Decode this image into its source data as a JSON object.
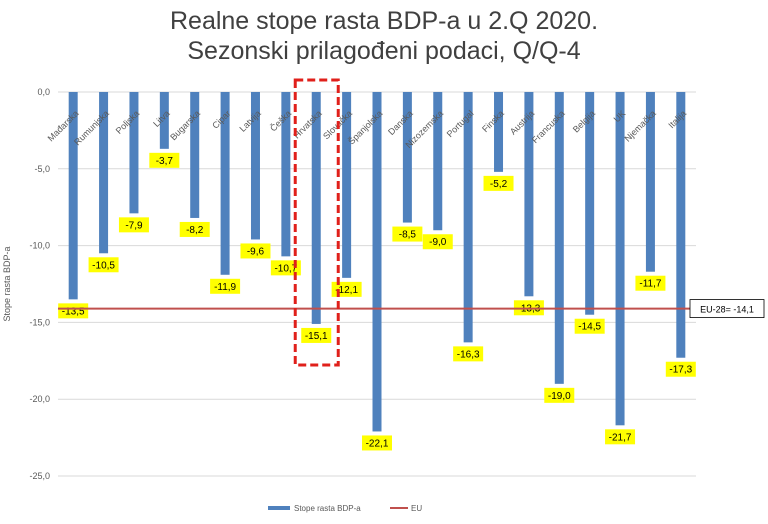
{
  "title_line1": "Realne stope rasta BDP-a u 2.Q 2020.",
  "title_line2": "Sezonski prilagođeni podaci, Q/Q-4",
  "chart_data": {
    "type": "bar",
    "ylabel": "Stope rasta BDP-a",
    "ylim": [
      -25,
      0
    ],
    "yticks": [
      "0,0",
      "-5,0",
      "-10,0",
      "-15,0",
      "-20,0",
      "-25,0"
    ],
    "grid": true,
    "categories": [
      "Mađarska",
      "Rumunjska",
      "Poljska",
      "Litva",
      "Bugarska",
      "Cipar",
      "Latvija",
      "Češka",
      "Hrvatska",
      "Slovačka",
      "Španjolska",
      "Danska",
      "Nizozemska",
      "Portugal",
      "Finska",
      "Austrija",
      "Francuska",
      "Belgija",
      "UK",
      "Njemačka",
      "Italija"
    ],
    "series": [
      {
        "name": "Stope rasta BDP-a",
        "values": [
          -13.5,
          -10.5,
          -7.9,
          -3.7,
          -8.2,
          -11.9,
          -9.6,
          -10.7,
          -15.1,
          -12.1,
          -22.1,
          -8.5,
          -9.0,
          -16.3,
          -5.2,
          -13.3,
          -19.0,
          -14.5,
          -21.7,
          -11.7,
          -17.3
        ],
        "color": "#4f81bd"
      }
    ],
    "data_labels": [
      "-13,5",
      "-10,5",
      "-7,9",
      "-3,7",
      "-8,2",
      "-11,9",
      "-9,6",
      "-10,7",
      "-15,1",
      "-12,1",
      "-22,1",
      "-8,5",
      "-9,0",
      "-16,3",
      "-5,2",
      "-13,3",
      "-19,0",
      "-14,5",
      "-21,7",
      "-11,7",
      "-17,3"
    ],
    "reference_line": {
      "name": "EU",
      "value": -14.1,
      "label": "EU-28= -14,1",
      "color": "#c0504d"
    },
    "highlight": "Hrvatska",
    "label_color": "#ffff00",
    "legend": [
      "Stope rasta BDP-a",
      "EU"
    ],
    "legend_placement": "bottom"
  }
}
